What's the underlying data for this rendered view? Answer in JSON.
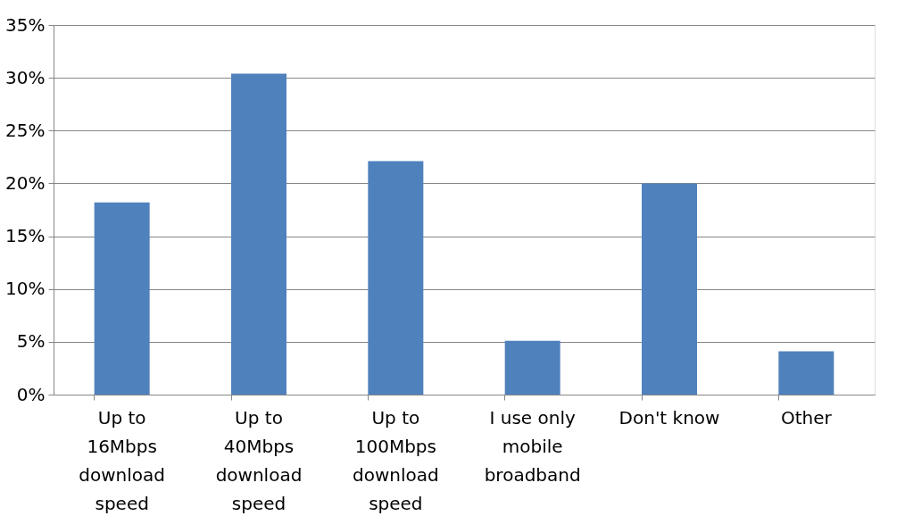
{
  "chart_data": {
    "type": "bar",
    "categories": [
      "Up to 16Mbps download speed",
      "Up to 40Mbps download speed",
      "Up to 100Mbps download speed",
      "I use only mobile broadband",
      "Don't know",
      "Other"
    ],
    "values": [
      18.2,
      30.4,
      22.1,
      5.1,
      20.0,
      4.1
    ],
    "color": "#4f81bd",
    "ylim": [
      0,
      35
    ],
    "yticks": [
      {
        "value": 0,
        "label": "0%"
      },
      {
        "value": 5,
        "label": "5%"
      },
      {
        "value": 10,
        "label": "10%"
      },
      {
        "value": 15,
        "label": "15%"
      },
      {
        "value": 20,
        "label": "20%"
      },
      {
        "value": 25,
        "label": "25%"
      },
      {
        "value": 30,
        "label": "30%"
      },
      {
        "value": 35,
        "label": "35%"
      }
    ],
    "grid": "y"
  }
}
